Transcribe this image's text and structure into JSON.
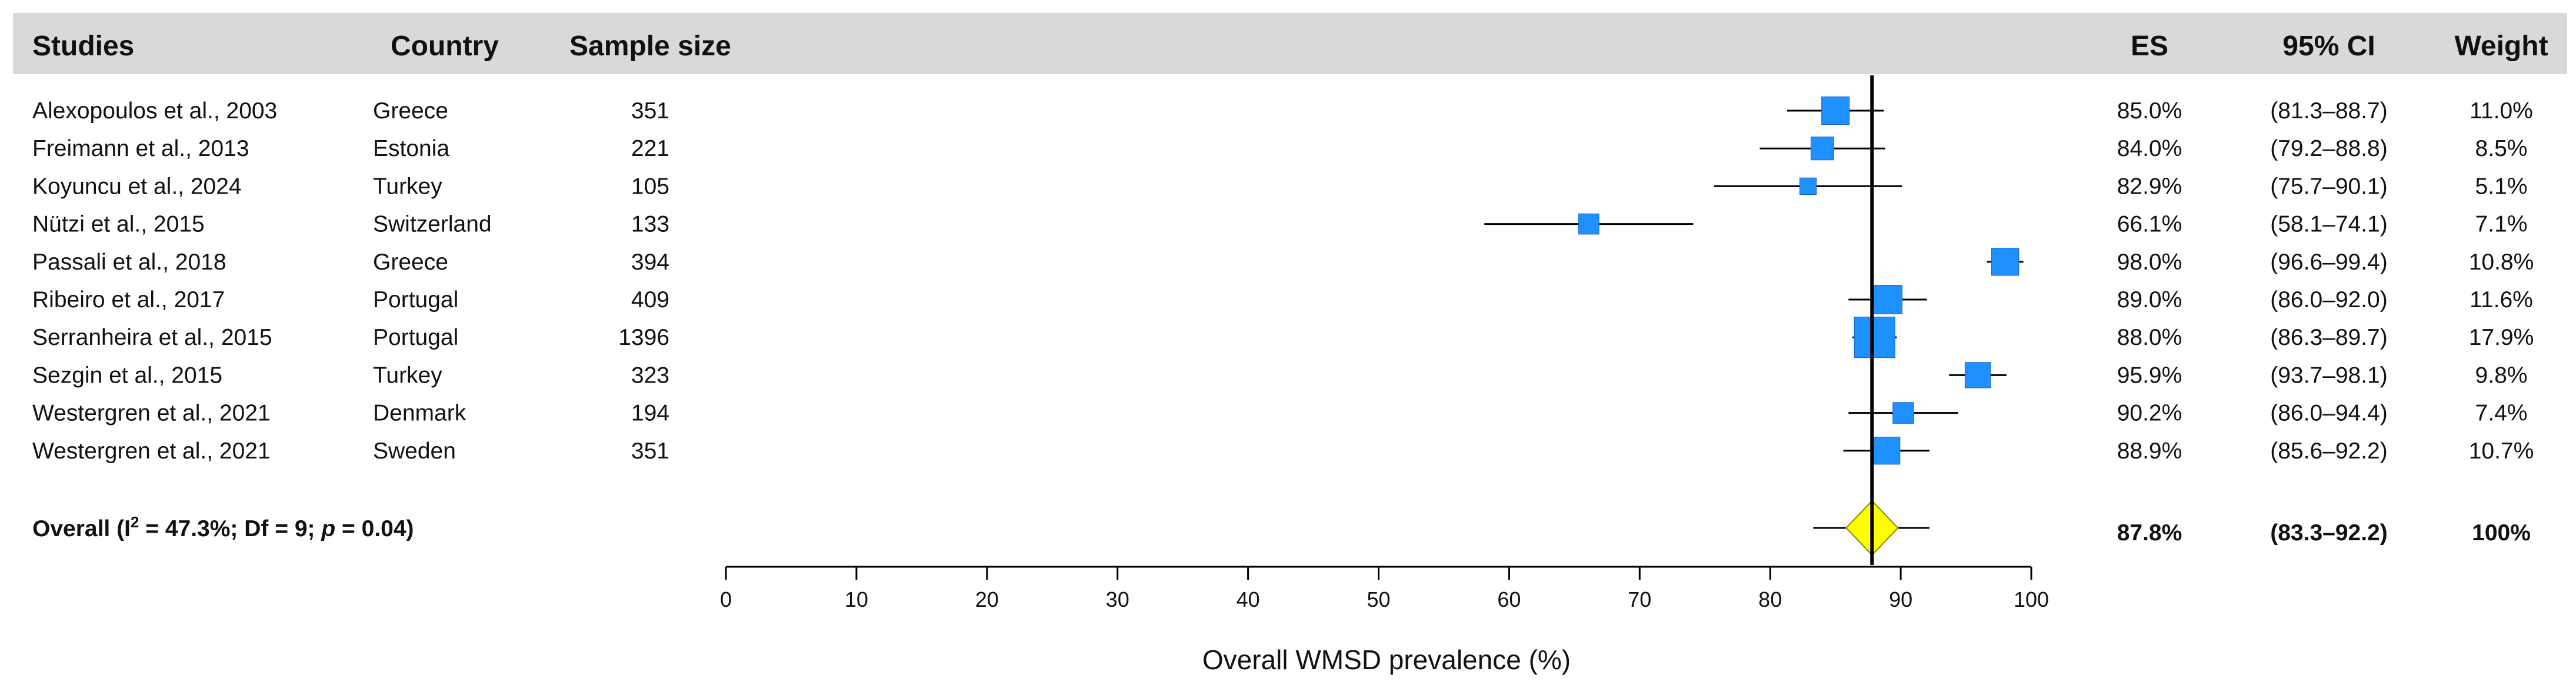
{
  "header": {
    "studies": "Studies",
    "country": "Country",
    "sample_size": "Sample size",
    "es": "ES",
    "ci": "95% CI",
    "weight": "Weight"
  },
  "chart_data": {
    "type": "forest",
    "xlabel": "Overall WMSD prevalence (%)",
    "xlim": [
      0,
      100
    ],
    "xticks": [
      0,
      10,
      20,
      30,
      40,
      50,
      60,
      70,
      80,
      90,
      100
    ],
    "reference_line": 87.8,
    "colors": {
      "study_marker": "#1e90ff",
      "overall_marker": "#ffff00",
      "header_band": "#d9d9d9"
    },
    "studies": [
      {
        "study": "Alexopoulos et al., 2003",
        "country": "Greece",
        "n": "351",
        "es": 85.0,
        "lo": 81.3,
        "hi": 88.7,
        "es_text": "85.0%",
        "ci_text": "(81.3–88.7)",
        "weight": 11.0,
        "weight_text": "11.0%"
      },
      {
        "study": "Freimann et al., 2013",
        "country": "Estonia",
        "n": "221",
        "es": 84.0,
        "lo": 79.2,
        "hi": 88.8,
        "es_text": "84.0%",
        "ci_text": "(79.2–88.8)",
        "weight": 8.5,
        "weight_text": "8.5%"
      },
      {
        "study": "Koyuncu et al., 2024",
        "country": "Turkey",
        "n": "105",
        "es": 82.9,
        "lo": 75.7,
        "hi": 90.1,
        "es_text": "82.9%",
        "ci_text": "(75.7–90.1)",
        "weight": 5.1,
        "weight_text": "5.1%"
      },
      {
        "study": "Nützi et al., 2015",
        "country": "Switzerland",
        "n": "133",
        "es": 66.1,
        "lo": 58.1,
        "hi": 74.1,
        "es_text": "66.1%",
        "ci_text": "(58.1–74.1)",
        "weight": 7.1,
        "weight_text": "7.1%"
      },
      {
        "study": "Passali et al., 2018",
        "country": "Greece",
        "n": "394",
        "es": 98.0,
        "lo": 96.6,
        "hi": 99.4,
        "es_text": "98.0%",
        "ci_text": "(96.6–99.4)",
        "weight": 10.8,
        "weight_text": "10.8%"
      },
      {
        "study": "Ribeiro et al., 2017",
        "country": "Portugal",
        "n": "409",
        "es": 89.0,
        "lo": 86.0,
        "hi": 92.0,
        "es_text": "89.0%",
        "ci_text": "(86.0–92.0)",
        "weight": 11.6,
        "weight_text": "11.6%"
      },
      {
        "study": "Serranheira et al., 2015",
        "country": "Portugal",
        "n": "1396",
        "es": 88.0,
        "lo": 86.3,
        "hi": 89.7,
        "es_text": "88.0%",
        "ci_text": "(86.3–89.7)",
        "weight": 17.9,
        "weight_text": "17.9%"
      },
      {
        "study": "Sezgin et al., 2015",
        "country": "Turkey",
        "n": "323",
        "es": 95.9,
        "lo": 93.7,
        "hi": 98.1,
        "es_text": "95.9%",
        "ci_text": "(93.7–98.1)",
        "weight": 9.8,
        "weight_text": "9.8%"
      },
      {
        "study": "Westergren et al., 2021",
        "country": "Denmark",
        "n": "194",
        "es": 90.2,
        "lo": 86.0,
        "hi": 94.4,
        "es_text": "90.2%",
        "ci_text": "(86.0–94.4)",
        "weight": 7.4,
        "weight_text": "7.4%"
      },
      {
        "study": "Westergren et al., 2021",
        "country": "Sweden",
        "n": "351",
        "es": 88.9,
        "lo": 85.6,
        "hi": 92.2,
        "es_text": "88.9%",
        "ci_text": "(85.6–92.2)",
        "weight": 10.7,
        "weight_text": "10.7%"
      }
    ],
    "overall": {
      "label_prefix": "Overall (I",
      "label_sup": "2",
      "label_mid": " = 47.3%; Df = 9; ",
      "label_p": "p",
      "label_suffix": " = 0.04)",
      "es": 87.8,
      "lo": 83.3,
      "hi": 92.2,
      "pi_lo": 83.3,
      "pi_hi": 92.2,
      "es_text": "87.8%",
      "ci_text": "(83.3–92.2)",
      "weight_text": "100%"
    }
  }
}
